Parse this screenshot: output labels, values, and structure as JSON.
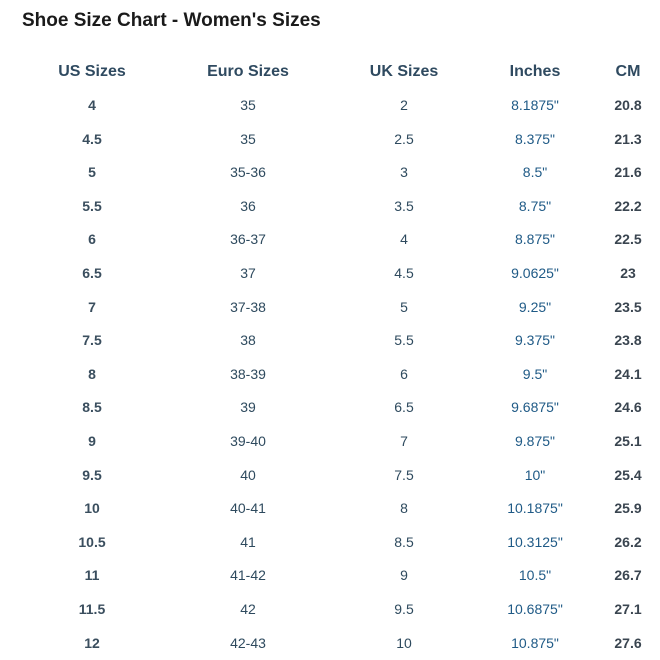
{
  "title": "Shoe Size Chart - Women's Sizes",
  "columns": [
    "US Sizes",
    "Euro Sizes",
    "UK Sizes",
    "Inches",
    "CM"
  ],
  "rows": [
    [
      "4",
      "35",
      "2",
      "8.1875\"",
      "20.8"
    ],
    [
      "4.5",
      "35",
      "2.5",
      "8.375\"",
      "21.3"
    ],
    [
      "5",
      "35-36",
      "3",
      "8.5\"",
      "21.6"
    ],
    [
      "5.5",
      "36",
      "3.5",
      "8.75\"",
      "22.2"
    ],
    [
      "6",
      "36-37",
      "4",
      "8.875\"",
      "22.5"
    ],
    [
      "6.5",
      "37",
      "4.5",
      "9.0625\"",
      "23"
    ],
    [
      "7",
      "37-38",
      "5",
      "9.25\"",
      "23.5"
    ],
    [
      "7.5",
      "38",
      "5.5",
      "9.375\"",
      "23.8"
    ],
    [
      "8",
      "38-39",
      "6",
      "9.5\"",
      "24.1"
    ],
    [
      "8.5",
      "39",
      "6.5",
      "9.6875\"",
      "24.6"
    ],
    [
      "9",
      "39-40",
      "7",
      "9.875\"",
      "25.1"
    ],
    [
      "9.5",
      "40",
      "7.5",
      "10\"",
      "25.4"
    ],
    [
      "10",
      "40-41",
      "8",
      "10.1875\"",
      "25.9"
    ],
    [
      "10.5",
      "41",
      "8.5",
      "10.3125\"",
      "26.2"
    ],
    [
      "11",
      "41-42",
      "9",
      "10.5\"",
      "26.7"
    ],
    [
      "11.5",
      "42",
      "9.5",
      "10.6875\"",
      "27.1"
    ],
    [
      "12",
      "42-43",
      "10",
      "10.875\"",
      "27.6"
    ]
  ]
}
